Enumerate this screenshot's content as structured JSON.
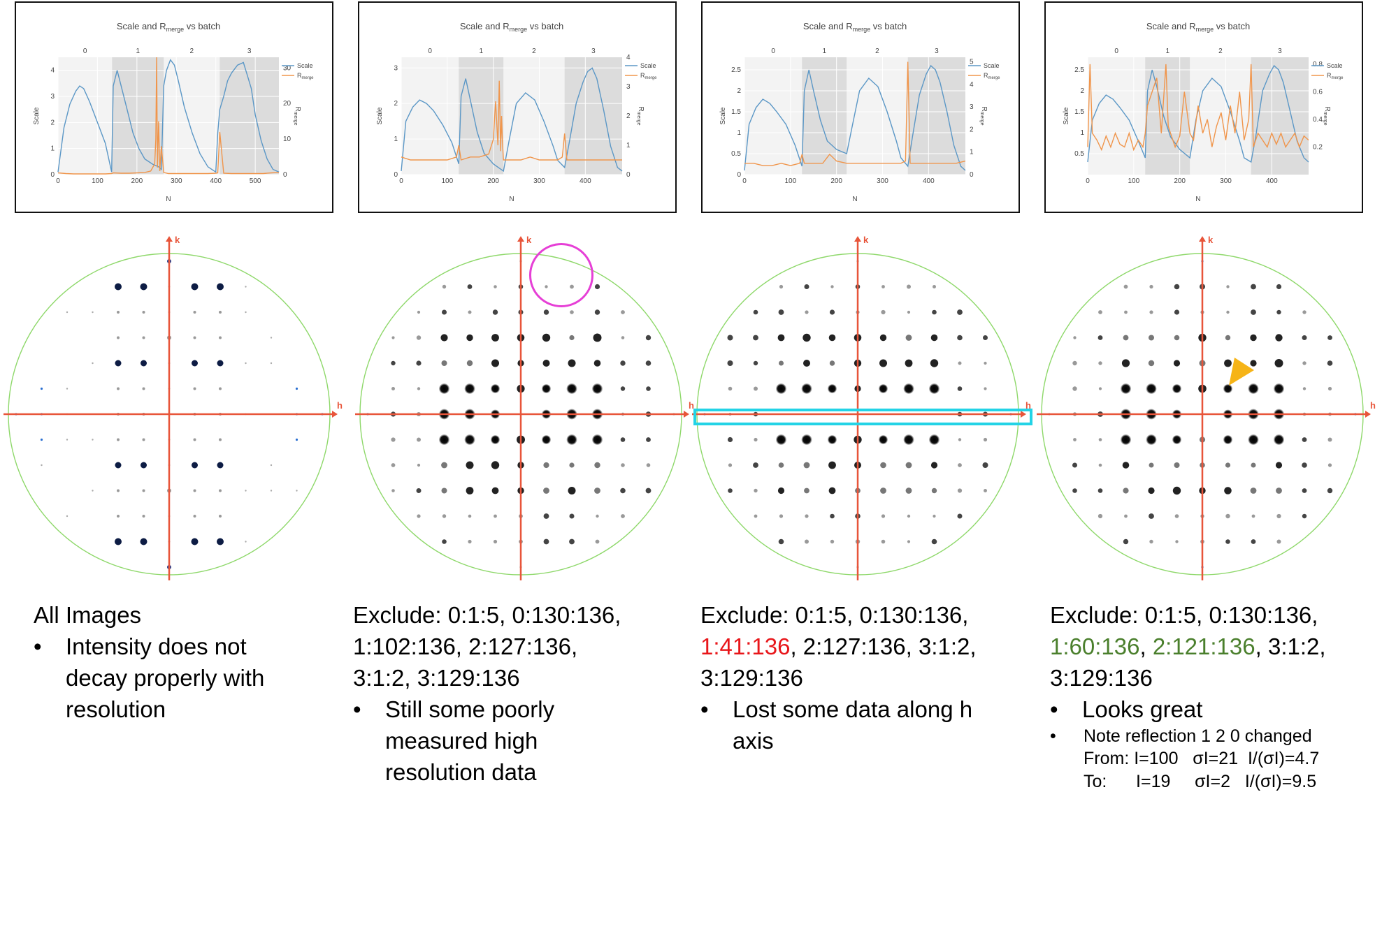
{
  "colors": {
    "scale": "#5b97c6",
    "rmerge": "#f0954b",
    "axis": "#e8553a",
    "circle": "#8ed86a",
    "highlight_box": "#23d3e6",
    "magenta_circle": "#e63fd6",
    "arrow": "#f6b417",
    "red_text": "#e8161a",
    "green_text": "#4a7f2c"
  },
  "chart_data": [
    {
      "type": "line",
      "title": "Scale and R",
      "title_sub": "merge",
      "title_end": " vs batch",
      "xlabel": "N",
      "ylabel_left": "Scale",
      "ylabel_right": "R",
      "ylabel_right_sub": "merge",
      "xlim": [
        0,
        560
      ],
      "xticks": [
        0,
        100,
        200,
        300,
        400,
        500
      ],
      "ylim_left": [
        0,
        4.5
      ],
      "yticks_left": [
        0,
        1,
        2,
        3,
        4
      ],
      "ylim_right": [
        0,
        33
      ],
      "yticks_right": [
        0,
        10,
        20,
        30
      ],
      "batch_ticks": [
        "0",
        "1",
        "2",
        "3"
      ],
      "batch_bands": [
        [
          0,
          137,
          false
        ],
        [
          137,
          268,
          true
        ],
        [
          268,
          410,
          false
        ],
        [
          410,
          560,
          true
        ]
      ],
      "series": [
        {
          "name": "Scale",
          "axis": "left",
          "x": [
            0,
            15,
            30,
            45,
            55,
            65,
            80,
            100,
            120,
            136,
            140,
            150,
            160,
            175,
            190,
            205,
            220,
            240,
            255,
            262,
            268,
            275,
            285,
            295,
            305,
            320,
            340,
            360,
            380,
            400,
            405,
            410,
            420,
            430,
            440,
            455,
            470,
            480,
            490,
            500,
            515,
            530,
            545,
            560
          ],
          "y": [
            0.1,
            1.8,
            2.7,
            3.2,
            3.4,
            3.3,
            2.8,
            2.0,
            1.2,
            0.1,
            3.4,
            4.0,
            3.4,
            2.5,
            1.6,
            1.0,
            0.6,
            0.4,
            0.3,
            0.2,
            3.4,
            4.0,
            4.4,
            4.2,
            3.6,
            2.6,
            1.6,
            0.8,
            0.3,
            0.1,
            1.6,
            2.5,
            3.0,
            3.6,
            3.9,
            4.2,
            4.3,
            3.8,
            3.3,
            2.3,
            1.3,
            0.6,
            0.2,
            0.1
          ]
        },
        {
          "name": "Rmerge",
          "axis": "right",
          "x": [
            0,
            20,
            40,
            60,
            80,
            100,
            120,
            136,
            140,
            160,
            180,
            200,
            220,
            235,
            245,
            248,
            250,
            252,
            255,
            258,
            262,
            268,
            280,
            300,
            320,
            340,
            360,
            380,
            400,
            405,
            410,
            420,
            440,
            460,
            480,
            500,
            520,
            540,
            560
          ],
          "y": [
            0.5,
            0.3,
            0.2,
            0.2,
            0.2,
            0.2,
            0.2,
            0.3,
            0.5,
            0.4,
            0.4,
            0.5,
            0.6,
            1.0,
            3.0,
            10.0,
            34.0,
            2.0,
            15.0,
            1.0,
            8.0,
            0.6,
            0.3,
            0.3,
            0.3,
            0.3,
            0.3,
            0.3,
            0.4,
            0.5,
            12.0,
            0.4,
            0.3,
            0.3,
            0.3,
            0.3,
            0.3,
            0.5,
            0.6
          ]
        }
      ]
    },
    {
      "type": "line",
      "title": "Scale and R",
      "title_sub": "merge",
      "title_end": " vs batch",
      "xlabel": "N",
      "ylabel_left": "Scale",
      "ylabel_right": "R",
      "ylabel_right_sub": "merge",
      "xlim": [
        0,
        480
      ],
      "xticks": [
        0,
        100,
        200,
        300,
        400
      ],
      "ylim_left": [
        0,
        3.3
      ],
      "yticks_left": [
        0,
        1,
        2,
        3
      ],
      "ylim_right": [
        0,
        4
      ],
      "yticks_right": [
        0,
        1,
        2,
        3,
        4
      ],
      "batch_ticks": [
        "0",
        "1",
        "2",
        "3"
      ],
      "batch_bands": [
        [
          0,
          125,
          false
        ],
        [
          125,
          222,
          true
        ],
        [
          222,
          355,
          false
        ],
        [
          355,
          480,
          true
        ]
      ],
      "series": [
        {
          "name": "Scale",
          "axis": "left",
          "x": [
            0,
            10,
            25,
            40,
            55,
            70,
            90,
            110,
            125,
            130,
            140,
            150,
            165,
            180,
            200,
            222,
            235,
            250,
            270,
            290,
            310,
            330,
            340,
            355,
            365,
            380,
            395,
            405,
            415,
            425,
            440,
            455,
            470,
            480
          ],
          "y": [
            0.1,
            1.5,
            1.9,
            2.1,
            2.0,
            1.8,
            1.4,
            0.9,
            0.3,
            2.2,
            2.7,
            2.1,
            1.2,
            0.6,
            0.3,
            0.1,
            1.0,
            2.0,
            2.3,
            2.1,
            1.5,
            0.8,
            0.4,
            0.2,
            0.9,
            2.0,
            2.6,
            2.9,
            3.0,
            2.7,
            1.8,
            0.8,
            0.2,
            0.1
          ]
        },
        {
          "name": "Rmerge",
          "axis": "right",
          "x": [
            0,
            20,
            40,
            60,
            80,
            100,
            120,
            125,
            130,
            150,
            170,
            190,
            200,
            205,
            210,
            213,
            216,
            218,
            220,
            222,
            240,
            260,
            280,
            300,
            320,
            340,
            350,
            355,
            360,
            380,
            400,
            420,
            440,
            460,
            480
          ],
          "y": [
            0.6,
            0.5,
            0.5,
            0.5,
            0.5,
            0.5,
            0.6,
            1.0,
            0.5,
            0.6,
            0.6,
            0.7,
            1.2,
            2.5,
            1.0,
            3.2,
            0.8,
            2.0,
            1.1,
            0.5,
            0.5,
            0.5,
            0.6,
            0.5,
            0.5,
            0.5,
            0.6,
            1.4,
            0.5,
            0.5,
            0.5,
            0.5,
            0.5,
            0.5,
            0.5
          ]
        }
      ]
    },
    {
      "type": "line",
      "title": "Scale and R",
      "title_sub": "merge",
      "title_end": " vs batch",
      "xlabel": "N",
      "ylabel_left": "Scale",
      "ylabel_right": "R",
      "ylabel_right_sub": "merge",
      "xlim": [
        0,
        480
      ],
      "xticks": [
        0,
        100,
        200,
        300,
        400
      ],
      "ylim_left": [
        0,
        2.8
      ],
      "yticks_left": [
        0,
        0.5,
        1,
        1.5,
        2,
        2.5
      ],
      "ylim_right": [
        0,
        5.2
      ],
      "yticks_right": [
        0,
        1,
        2,
        3,
        4,
        5
      ],
      "batch_ticks": [
        "0",
        "1",
        "2",
        "3"
      ],
      "batch_bands": [
        [
          0,
          125,
          false
        ],
        [
          125,
          222,
          true
        ],
        [
          222,
          355,
          false
        ],
        [
          355,
          480,
          true
        ]
      ],
      "series": [
        {
          "name": "Scale",
          "axis": "left",
          "x": [
            0,
            10,
            25,
            40,
            55,
            70,
            90,
            110,
            125,
            130,
            140,
            150,
            165,
            180,
            200,
            222,
            235,
            250,
            270,
            290,
            310,
            330,
            340,
            355,
            365,
            380,
            395,
            405,
            415,
            425,
            440,
            455,
            470,
            480
          ],
          "y": [
            0.1,
            1.2,
            1.6,
            1.8,
            1.7,
            1.5,
            1.2,
            0.7,
            0.2,
            2.0,
            2.5,
            2.0,
            1.3,
            0.8,
            0.6,
            0.5,
            1.2,
            2.0,
            2.3,
            2.1,
            1.5,
            0.8,
            0.4,
            0.2,
            0.9,
            1.9,
            2.4,
            2.6,
            2.5,
            2.2,
            1.5,
            0.7,
            0.2,
            0.1
          ]
        },
        {
          "name": "Rmerge",
          "axis": "right",
          "x": [
            0,
            20,
            40,
            60,
            80,
            100,
            120,
            125,
            130,
            150,
            170,
            185,
            200,
            222,
            240,
            260,
            280,
            300,
            320,
            340,
            350,
            355,
            360,
            380,
            400,
            420,
            440,
            460,
            480
          ],
          "y": [
            0.5,
            0.5,
            0.4,
            0.4,
            0.5,
            0.4,
            0.5,
            0.9,
            0.5,
            0.5,
            0.5,
            0.9,
            0.6,
            0.5,
            0.5,
            0.5,
            0.5,
            0.5,
            0.5,
            0.5,
            0.6,
            5.0,
            0.5,
            0.5,
            0.5,
            0.5,
            0.5,
            0.5,
            0.6
          ]
        }
      ]
    },
    {
      "type": "line",
      "title": "Scale and R",
      "title_sub": "merge",
      "title_end": " vs batch",
      "xlabel": "N",
      "ylabel_left": "Scale",
      "ylabel_right": "R",
      "ylabel_right_sub": "merge",
      "xlim": [
        0,
        480
      ],
      "xticks": [
        0,
        100,
        200,
        300,
        400
      ],
      "ylim_left": [
        0,
        2.8
      ],
      "yticks_left": [
        0.5,
        1,
        1.5,
        2,
        2.5
      ],
      "ylim_right": [
        0,
        0.85
      ],
      "yticks_right": [
        0.2,
        0.4,
        0.6,
        0.8
      ],
      "batch_ticks": [
        "0",
        "1",
        "2",
        "3"
      ],
      "batch_bands": [
        [
          0,
          125,
          false
        ],
        [
          125,
          222,
          true
        ],
        [
          222,
          355,
          false
        ],
        [
          355,
          480,
          true
        ]
      ],
      "series": [
        {
          "name": "Scale",
          "axis": "left",
          "x": [
            0,
            10,
            25,
            40,
            55,
            70,
            90,
            110,
            125,
            130,
            140,
            150,
            165,
            180,
            200,
            222,
            235,
            250,
            270,
            290,
            310,
            330,
            340,
            355,
            365,
            380,
            395,
            405,
            415,
            425,
            440,
            455,
            470,
            480
          ],
          "y": [
            0.3,
            1.3,
            1.7,
            1.9,
            1.8,
            1.6,
            1.3,
            0.8,
            0.4,
            2.0,
            2.5,
            2.1,
            1.4,
            0.9,
            0.6,
            0.4,
            1.3,
            2.0,
            2.3,
            2.1,
            1.5,
            0.8,
            0.4,
            0.3,
            0.9,
            2.0,
            2.4,
            2.6,
            2.5,
            2.2,
            1.5,
            0.8,
            0.4,
            0.3
          ]
        },
        {
          "name": "Rmerge",
          "axis": "right",
          "x": [
            0,
            5,
            10,
            20,
            30,
            40,
            50,
            60,
            70,
            80,
            90,
            100,
            110,
            120,
            125,
            130,
            140,
            150,
            160,
            170,
            175,
            180,
            190,
            200,
            210,
            222,
            230,
            240,
            250,
            260,
            270,
            280,
            290,
            300,
            310,
            320,
            330,
            340,
            350,
            355,
            360,
            370,
            380,
            390,
            400,
            410,
            420,
            430,
            440,
            450,
            460,
            470,
            480
          ],
          "y": [
            0.2,
            0.8,
            0.3,
            0.25,
            0.18,
            0.28,
            0.2,
            0.3,
            0.22,
            0.2,
            0.3,
            0.18,
            0.25,
            0.2,
            0.3,
            0.5,
            0.6,
            0.7,
            0.3,
            0.8,
            0.35,
            0.3,
            0.2,
            0.28,
            0.6,
            0.3,
            0.25,
            0.5,
            0.3,
            0.4,
            0.2,
            0.35,
            0.45,
            0.25,
            0.5,
            0.3,
            0.6,
            0.25,
            0.4,
            0.8,
            0.2,
            0.3,
            0.25,
            0.2,
            0.3,
            0.22,
            0.3,
            0.2,
            0.25,
            0.3,
            0.2,
            0.28,
            0.25
          ]
        }
      ]
    }
  ],
  "captions": [
    {
      "lines": [
        [
          {
            "t": "All Images",
            "c": ""
          }
        ]
      ],
      "bullets": [
        "Intensity does not",
        "decay properly with",
        "resolution"
      ],
      "bullet_breaks": [
        0
      ]
    },
    {
      "lines": [
        [
          {
            "t": "Exclude: 0:1:5, 0:130:136,",
            "c": ""
          }
        ],
        [
          {
            "t": "1:102:136, 2:127:136,",
            "c": ""
          }
        ],
        [
          {
            "t": "3:1:2, 3:129:136",
            "c": ""
          }
        ]
      ],
      "bullets": [
        "Still some poorly",
        "measured high",
        "resolution data"
      ],
      "bullet_breaks": [
        0
      ]
    },
    {
      "lines": [
        [
          {
            "t": "Exclude: 0:1:5, 0:130:136,",
            "c": ""
          }
        ],
        [
          {
            "t": "1:41:136",
            "c": "red"
          },
          {
            "t": ", 2:127:136, 3:1:2,",
            "c": ""
          }
        ],
        [
          {
            "t": "3:129:136",
            "c": ""
          }
        ]
      ],
      "bullets": [
        "Lost some data along h",
        "axis"
      ],
      "bullet_breaks": [
        0
      ]
    },
    {
      "lines": [
        [
          {
            "t": "Exclude: 0:1:5, 0:130:136,",
            "c": ""
          }
        ],
        [
          {
            "t": "1:60:136",
            "c": "green"
          },
          {
            "t": ", ",
            "c": ""
          },
          {
            "t": "2:121:136",
            "c": "green"
          },
          {
            "t": ", 3:1:2,",
            "c": ""
          }
        ],
        [
          {
            "t": "3:129:136",
            "c": ""
          }
        ]
      ],
      "bullets": [
        "Looks great"
      ],
      "bullet_breaks": [
        0
      ],
      "note": {
        "bullet": "Note reflection 1 2 0 changed",
        "from": "From: I=100   σI=21  I/(σI)=4.7",
        "to": "To:      I=19     σI=2   I/(σI)=9.5"
      }
    }
  ],
  "patterns": [
    {
      "axis_h": "h",
      "axis_k": "k",
      "style": "blue_columns"
    },
    {
      "axis_h": "h",
      "axis_k": "k",
      "style": "central_strong"
    },
    {
      "axis_h": "h",
      "axis_k": "k",
      "style": "central_strong_gap"
    },
    {
      "axis_h": "h",
      "axis_k": "k",
      "style": "central_clean"
    }
  ]
}
